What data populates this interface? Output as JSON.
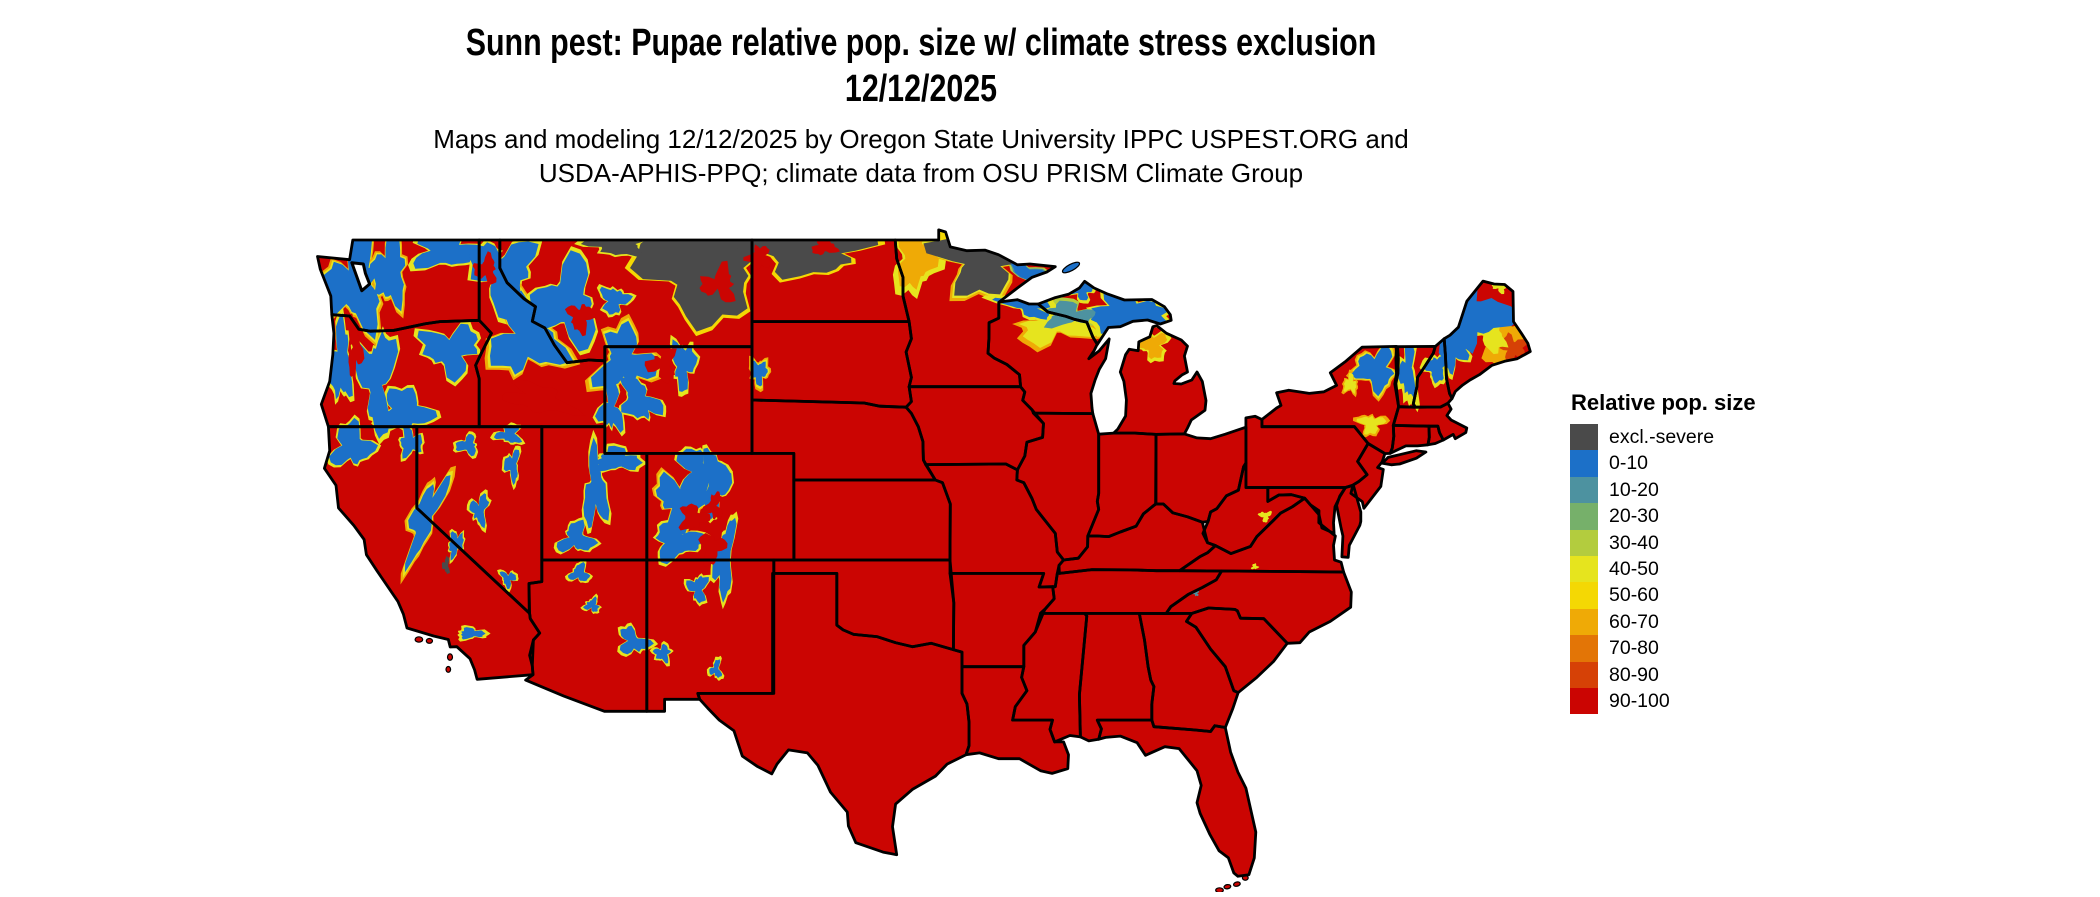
{
  "figure": {
    "title_line1": "Sunn pest: Pupae relative pop. size w/ climate stress exclusion",
    "title_line2": "12/12/2025",
    "subtitle_line1": "Maps and modeling 12/12/2025 by Oregon State University IPPC USPEST.ORG and",
    "subtitle_line2": "USDA-APHIS-PPQ; climate data from OSU PRISM Climate Group"
  },
  "legend": {
    "title": "Relative pop. size",
    "items": [
      {
        "class": "excl.-severe",
        "label": "excl.-severe",
        "color": "#4a4a4a"
      },
      {
        "class": "0-10",
        "label": "0-10",
        "color": "#1c70c8"
      },
      {
        "class": "10-20",
        "label": "10-20",
        "color": "#4d92a0"
      },
      {
        "class": "20-30",
        "label": "20-30",
        "color": "#76b06a"
      },
      {
        "class": "30-40",
        "label": "30-40",
        "color": "#b3cc3e"
      },
      {
        "class": "40-50",
        "label": "40-50",
        "color": "#e6e41e"
      },
      {
        "class": "50-60",
        "label": "50-60",
        "color": "#f4d804"
      },
      {
        "class": "60-70",
        "label": "60-70",
        "color": "#efaa06"
      },
      {
        "class": "70-80",
        "label": "70-80",
        "color": "#e37506"
      },
      {
        "class": "80-90",
        "label": "80-90",
        "color": "#d64106"
      },
      {
        "class": "90-100",
        "label": "90-100",
        "color": "#cb0502"
      }
    ]
  },
  "map": {
    "type": "choropleth",
    "area": "Contiguous United States",
    "base_class": "90-100",
    "border_color": "#000000",
    "water_color": "#ffffff",
    "regions": [
      {
        "name": "eastern-montana-exclusion",
        "class": "excl.-severe"
      },
      {
        "name": "montana-hi-line-exclusion",
        "class": "excl.-severe"
      },
      {
        "name": "north-dakota-exclusion",
        "class": "excl.-severe"
      },
      {
        "name": "red-river-valley-fringe",
        "class": "60-70"
      },
      {
        "name": "lake-of-the-woods-fringe",
        "class": "50-60"
      },
      {
        "name": "northwest-minnesota-exclusion",
        "class": "excl.-severe"
      },
      {
        "name": "arrowhead-shore-band",
        "class": "0-10"
      },
      {
        "name": "north-wisconsin-fringe",
        "class": "40-50"
      },
      {
        "name": "superior-south-shore",
        "class": "0-10"
      },
      {
        "name": "upper-peninsula-teal-band",
        "class": "10-20"
      },
      {
        "name": "keweenaw-peninsula",
        "class": "0-10"
      },
      {
        "name": "eastern-upper-peninsula",
        "class": "0-10"
      },
      {
        "name": "northern-lower-michigan",
        "class": "60-70"
      },
      {
        "name": "western-washington",
        "class": "0-10"
      },
      {
        "name": "washington-cascades",
        "class": "0-10"
      },
      {
        "name": "okanogan-highlands",
        "class": "0-10"
      },
      {
        "name": "blue-mountains",
        "class": "0-10"
      },
      {
        "name": "oregon-coast-range",
        "class": "0-10"
      },
      {
        "name": "oregon-cascades",
        "class": "0-10"
      },
      {
        "name": "south-central-oregon",
        "class": "0-10"
      },
      {
        "name": "klamath-mountains",
        "class": "0-10"
      },
      {
        "name": "warner-modoc",
        "class": "0-10"
      },
      {
        "name": "sierra-nevada",
        "class": "0-10"
      },
      {
        "name": "southern-sierra-exclusion",
        "class": "excl.-severe"
      },
      {
        "name": "idaho-panhandle",
        "class": "0-10"
      },
      {
        "name": "central-idaho-rockies",
        "class": "0-10"
      },
      {
        "name": "western-montana-rockies",
        "class": "0-10"
      },
      {
        "name": "little-belt-mountains",
        "class": "0-10"
      },
      {
        "name": "beartooth-absaroka",
        "class": "0-10"
      },
      {
        "name": "bighorn-mountains",
        "class": "0-10"
      },
      {
        "name": "wind-river-range",
        "class": "0-10"
      },
      {
        "name": "salt-river-wyoming-range",
        "class": "0-10"
      },
      {
        "name": "uinta-mountains",
        "class": "0-10"
      },
      {
        "name": "wasatch-range",
        "class": "0-10"
      },
      {
        "name": "southern-utah-plateaus",
        "class": "0-10"
      },
      {
        "name": "kaibab-plateau",
        "class": "0-10"
      },
      {
        "name": "san-francisco-peaks",
        "class": "0-10"
      },
      {
        "name": "mogollon-white-mountains",
        "class": "0-10"
      },
      {
        "name": "ruby-mountains",
        "class": "0-10"
      },
      {
        "name": "northwest-nevada-ranges",
        "class": "0-10"
      },
      {
        "name": "northeast-nevada-ranges",
        "class": "0-10"
      },
      {
        "name": "toiyabe-range",
        "class": "0-10"
      },
      {
        "name": "white-mountains-california",
        "class": "0-10"
      },
      {
        "name": "spring-mountains",
        "class": "0-10"
      },
      {
        "name": "san-gabriel-san-bernardino",
        "class": "0-10"
      },
      {
        "name": "black-hills",
        "class": "0-10"
      },
      {
        "name": "colorado-front-range",
        "class": "0-10"
      },
      {
        "name": "colorado-rockies-north",
        "class": "0-10"
      },
      {
        "name": "colorado-rockies-central",
        "class": "0-10"
      },
      {
        "name": "san-juan-mountains",
        "class": "0-10"
      },
      {
        "name": "sangre-de-cristo",
        "class": "0-10"
      },
      {
        "name": "jemez-mountains",
        "class": "0-10"
      },
      {
        "name": "sacramento-mountains",
        "class": "0-10"
      },
      {
        "name": "mogollon-new-mexico",
        "class": "0-10"
      },
      {
        "name": "adirondacks",
        "class": "0-10"
      },
      {
        "name": "tug-hill-plateau",
        "class": "40-50"
      },
      {
        "name": "catskills",
        "class": "40-50"
      },
      {
        "name": "green-mountains",
        "class": "0-10"
      },
      {
        "name": "white-mountains-nh",
        "class": "0-10"
      },
      {
        "name": "maine-inland-fringe",
        "class": "60-70"
      },
      {
        "name": "maine-downeast",
        "class": "80-90"
      },
      {
        "name": "maine-yellow-band",
        "class": "40-50"
      },
      {
        "name": "maine-interior",
        "class": "0-10"
      },
      {
        "name": "western-maine-mountains",
        "class": "0-10"
      },
      {
        "name": "saint-john-valley-fringe",
        "class": "40-50"
      },
      {
        "name": "allegheny-highlands-fleck",
        "class": "40-50"
      },
      {
        "name": "blue-ridge-fleck",
        "class": "40-50"
      },
      {
        "name": "great-smoky-fleck",
        "class": "10-20"
      },
      {
        "name": "willamette-valley",
        "class": "90-100"
      },
      {
        "name": "snake-river-plain",
        "class": "90-100"
      },
      {
        "name": "montana-valleys",
        "class": "90-100"
      },
      {
        "name": "bighorn-basin",
        "class": "90-100"
      },
      {
        "name": "eastern-montana-mottle",
        "class": "90-100"
      },
      {
        "name": "north-dakota-mottle-west",
        "class": "90-100"
      },
      {
        "name": "north-dakota-mottle-east",
        "class": "90-100"
      },
      {
        "name": "gunnison-valley",
        "class": "90-100"
      },
      {
        "name": "south-park",
        "class": "90-100"
      },
      {
        "name": "san-luis-valley",
        "class": "90-100"
      },
      {
        "name": "idaho-panhandle-valley",
        "class": "90-100"
      },
      {
        "name": "isle-royale",
        "class": "0-10"
      },
      {
        "name": "florida-keys",
        "class": "90-100"
      },
      {
        "name": "california-channel-islands",
        "class": "90-100"
      }
    ]
  }
}
